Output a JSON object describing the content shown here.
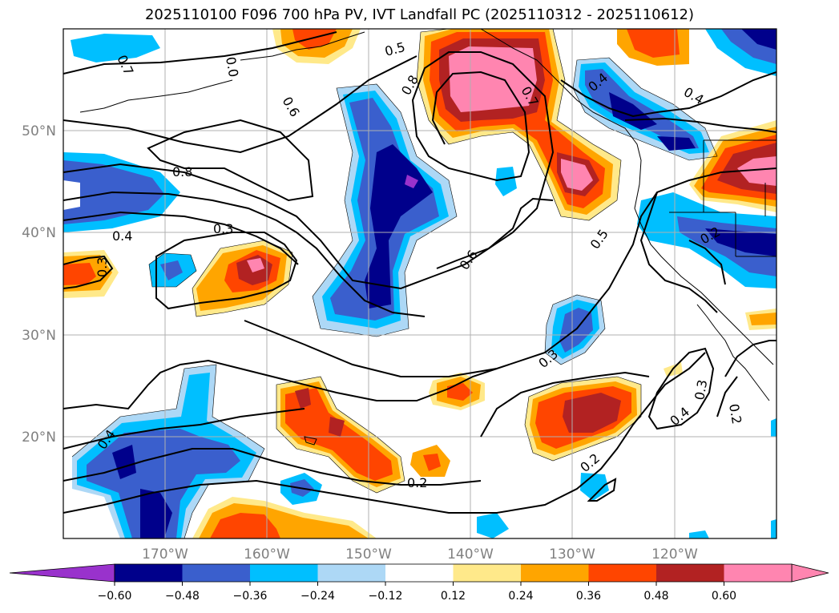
{
  "title": "2025110100 F096 700 hPa PV, IVT Landfall PC (2025110312 - 2025110612)",
  "map": {
    "lat_labels": [
      "50°N",
      "40°N",
      "30°N",
      "20°N"
    ],
    "lon_labels": [
      "170°W",
      "160°W",
      "150°W",
      "140°W",
      "130°W",
      "120°W"
    ],
    "contour_labels": [
      {
        "text": "0.7"
      },
      {
        "text": "0.0"
      },
      {
        "text": "0.5"
      },
      {
        "text": "0.6"
      },
      {
        "text": "0.8"
      },
      {
        "text": "0.7"
      },
      {
        "text": "0.4"
      },
      {
        "text": "0.4"
      },
      {
        "text": "0.8"
      },
      {
        "text": "0.4"
      },
      {
        "text": "0.3"
      },
      {
        "text": "0.3"
      },
      {
        "text": "0.6"
      },
      {
        "text": "0.5"
      },
      {
        "text": "0.2"
      },
      {
        "text": "0.3"
      },
      {
        "text": "0.3"
      },
      {
        "text": "0.4"
      },
      {
        "text": "0.2"
      },
      {
        "text": "0.4"
      },
      {
        "text": "0.2"
      },
      {
        "text": "0.2"
      }
    ]
  },
  "colorbar": {
    "ticks": [
      "−0.60",
      "−0.48",
      "−0.36",
      "−0.24",
      "−0.12",
      "0.12",
      "0.24",
      "0.36",
      "0.48",
      "0.60"
    ],
    "colors": [
      "#9932CC",
      "#00008B",
      "#3A5FCD",
      "#00BFFF",
      "#ADD8F6",
      "#FFFFFF",
      "#FFE98A",
      "#FFA500",
      "#FF4500",
      "#B22222",
      "#FF85B0",
      "#FF85B0"
    ]
  }
}
